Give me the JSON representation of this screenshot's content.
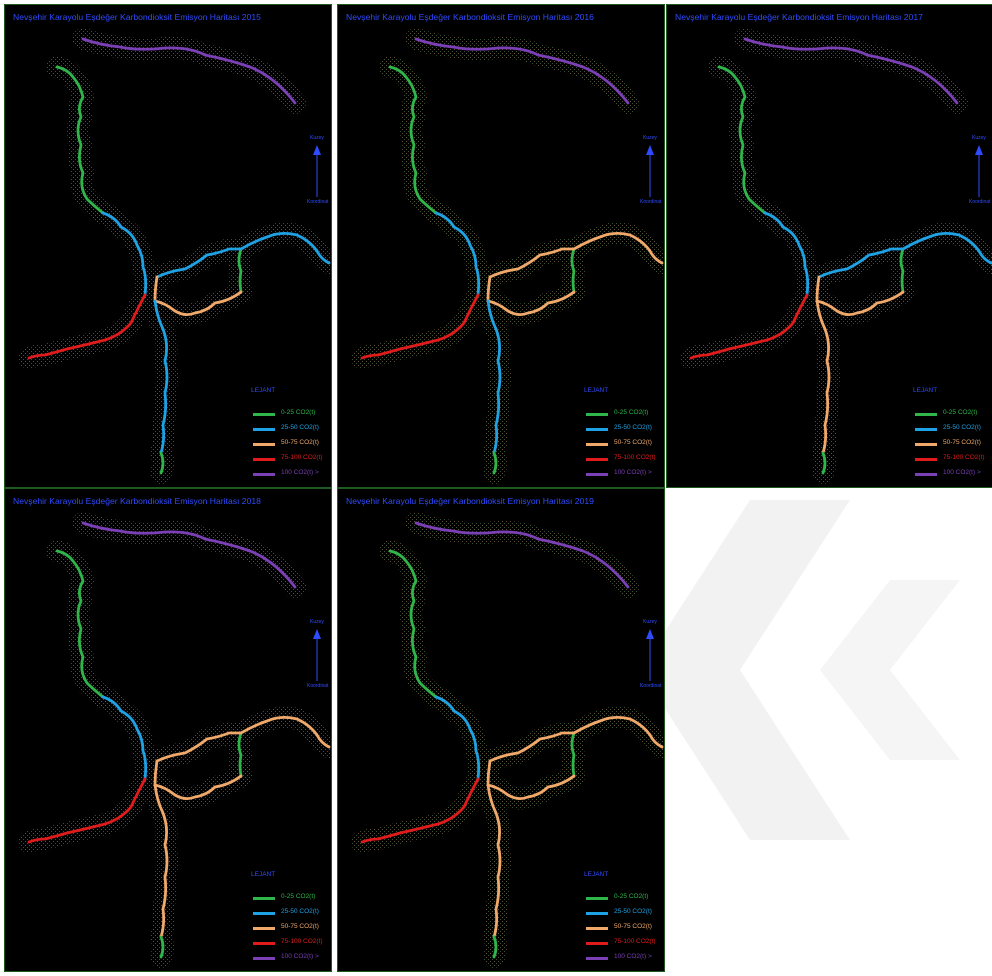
{
  "colors": {
    "c0_25": "#2fb54a",
    "c25_50": "#1fa2e4",
    "c50_75": "#f0a96b",
    "c75_100": "#e01b1b",
    "c100": "#7b3fb6",
    "title": "#2f4bff"
  },
  "legend": {
    "title": "LEJANT",
    "items": [
      {
        "label": "0-25 CO2(t)",
        "color_key": "c0_25"
      },
      {
        "label": "25-50 CO2(t)",
        "color_key": "c25_50"
      },
      {
        "label": "50-75 CO2(t)",
        "color_key": "c50_75"
      },
      {
        "label": "75-100 CO2(t)",
        "color_key": "c75_100"
      },
      {
        "label": "100 CO2(t) >",
        "color_key": "c100"
      }
    ]
  },
  "north_arrow": {
    "top": "Kuzey",
    "bottom": "Koordinat"
  },
  "maps": [
    {
      "title": "Nevşehir Karayolu Eşdeğer Karbondioksit Emisyon Haritası 2015",
      "segments": {
        "north_upper": "c0_25",
        "north_lower": "c25_50",
        "east_branch": "c25_50",
        "east_loop": "c50_75",
        "connector": "c0_25",
        "southwest": "c75_100",
        "south": "c25_50",
        "south_tip": "c0_25",
        "top_road": "c100"
      }
    },
    {
      "title": "Nevşehir Karayolu Eşdeğer Karbondioksit Emisyon Haritası 2016",
      "segments": {
        "north_upper": "c0_25",
        "north_lower": "c25_50",
        "east_branch": "c50_75",
        "east_loop": "c50_75",
        "connector": "c0_25",
        "southwest": "c75_100",
        "south": "c25_50",
        "south_tip": "c0_25",
        "top_road": "c100"
      }
    },
    {
      "title": "Nevşehir Karayolu Eşdeğer Karbondioksit Emisyon Haritası 2017",
      "segments": {
        "north_upper": "c0_25",
        "north_lower": "c25_50",
        "east_branch": "c25_50",
        "east_loop": "c50_75",
        "connector": "c0_25",
        "southwest": "c75_100",
        "south": "c50_75",
        "south_tip": "c0_25",
        "top_road": "c100"
      }
    },
    {
      "title": "Nevşehir Karayolu Eşdeğer Karbondioksit Emisyon Haritası 2018",
      "segments": {
        "north_upper": "c0_25",
        "north_lower": "c25_50",
        "east_branch": "c50_75",
        "east_loop": "c50_75",
        "connector": "c0_25",
        "southwest": "c75_100",
        "south": "c50_75",
        "south_tip": "c0_25",
        "top_road": "c100"
      }
    },
    {
      "title": "Nevşehir Karayolu Eşdeğer Karbondioksit Emisyon Haritası 2019",
      "segments": {
        "north_upper": "c0_25",
        "north_lower": "c25_50",
        "east_branch": "c50_75",
        "east_loop": "c50_75",
        "connector": "c0_25",
        "southwest": "c75_100",
        "south": "c50_75",
        "south_tip": "c0_25",
        "top_road": "c100"
      }
    }
  ]
}
